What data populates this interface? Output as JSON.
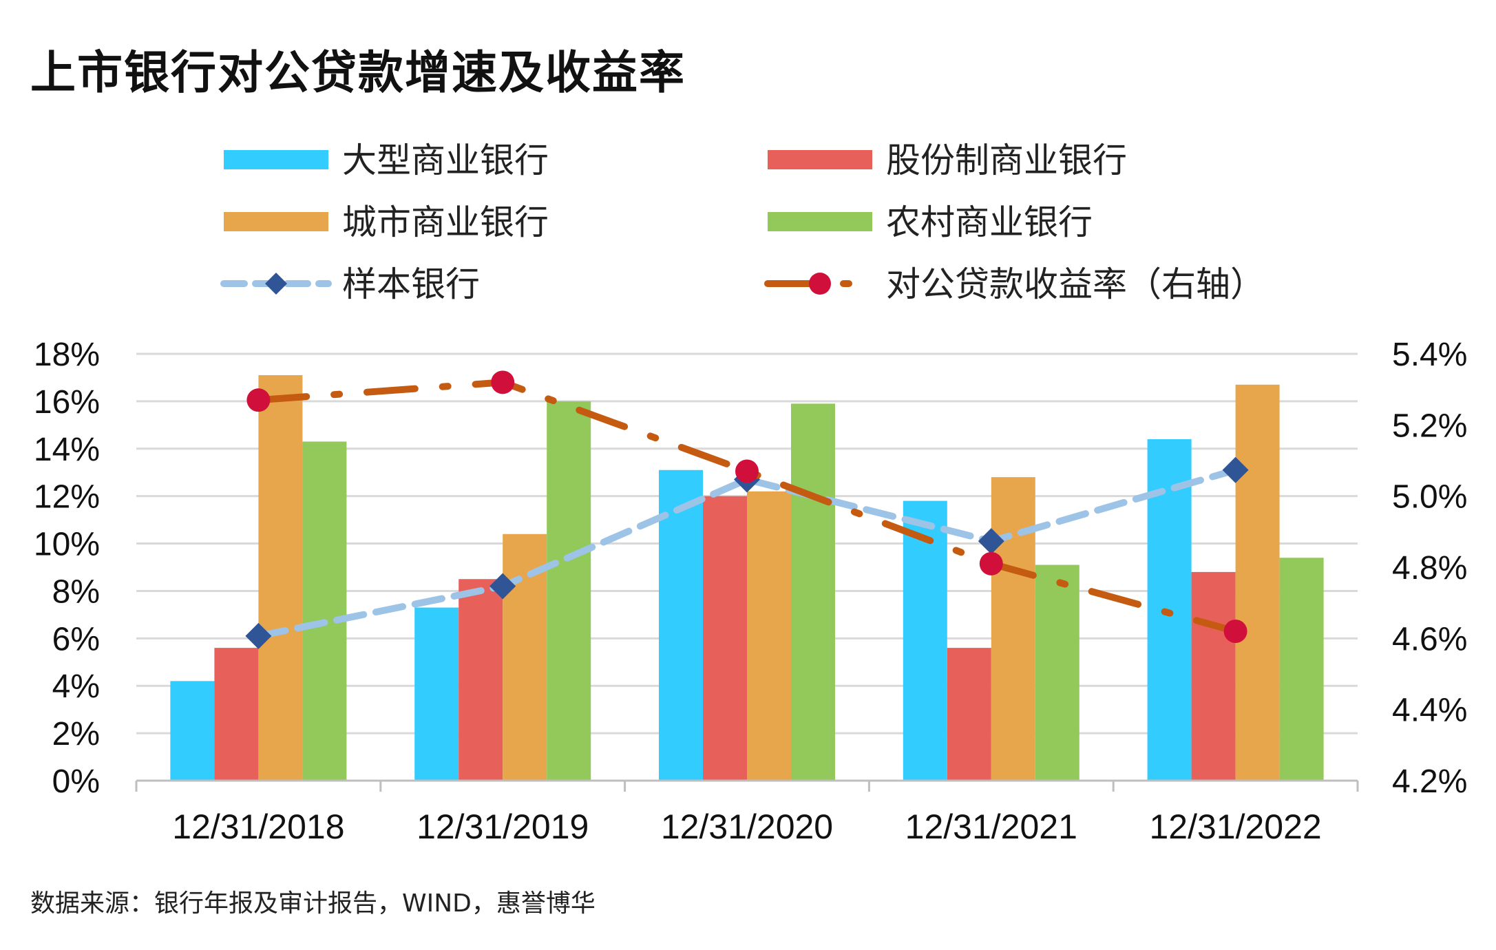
{
  "title": "上市银行对公贷款增速及收益率",
  "source": "数据来源：银行年报及审计报告，WIND，惠誉博华",
  "chart_data": {
    "type": "bar",
    "categories": [
      "12/31/2018",
      "12/31/2019",
      "12/31/2020",
      "12/31/2021",
      "12/31/2022"
    ],
    "bar_series": [
      {
        "name": "大型商业银行",
        "color": "#33CCFF",
        "values": [
          4.2,
          7.3,
          13.1,
          11.8,
          14.4
        ]
      },
      {
        "name": "股份制商业银行",
        "color": "#E8605A",
        "values": [
          5.6,
          8.5,
          12.0,
          5.6,
          8.8
        ]
      },
      {
        "name": "城市商业银行",
        "color": "#E8A64C",
        "values": [
          17.1,
          10.4,
          12.2,
          12.8,
          16.7
        ]
      },
      {
        "name": "农村商业银行",
        "color": "#92C95A",
        "values": [
          14.3,
          16.0,
          15.9,
          9.1,
          9.4
        ]
      }
    ],
    "line_series": [
      {
        "name": "样本银行",
        "color": "#9DC3E6",
        "marker_color": "#2F5597",
        "axis": "left",
        "style": "dashed",
        "marker": "diamond",
        "values": [
          6.1,
          8.2,
          12.7,
          10.1,
          13.1
        ]
      },
      {
        "name": "对公贷款收益率（右轴）",
        "color": "#C55A11",
        "marker_color": "#D0103A",
        "axis": "right",
        "style": "dash-dot",
        "marker": "circle",
        "values": [
          5.27,
          5.32,
          5.07,
          4.81,
          4.62
        ]
      }
    ],
    "y_left": {
      "min": 0,
      "max": 18,
      "step": 2,
      "ticks": [
        "0%",
        "2%",
        "4%",
        "6%",
        "8%",
        "10%",
        "12%",
        "14%",
        "16%",
        "18%"
      ]
    },
    "y_right": {
      "min": 4.2,
      "max": 5.4,
      "step": 0.2,
      "ticks": [
        "4.2%",
        "4.4%",
        "4.6%",
        "4.8%",
        "5.0%",
        "5.2%",
        "5.4%"
      ]
    },
    "grid": true,
    "legend_position": "top"
  }
}
